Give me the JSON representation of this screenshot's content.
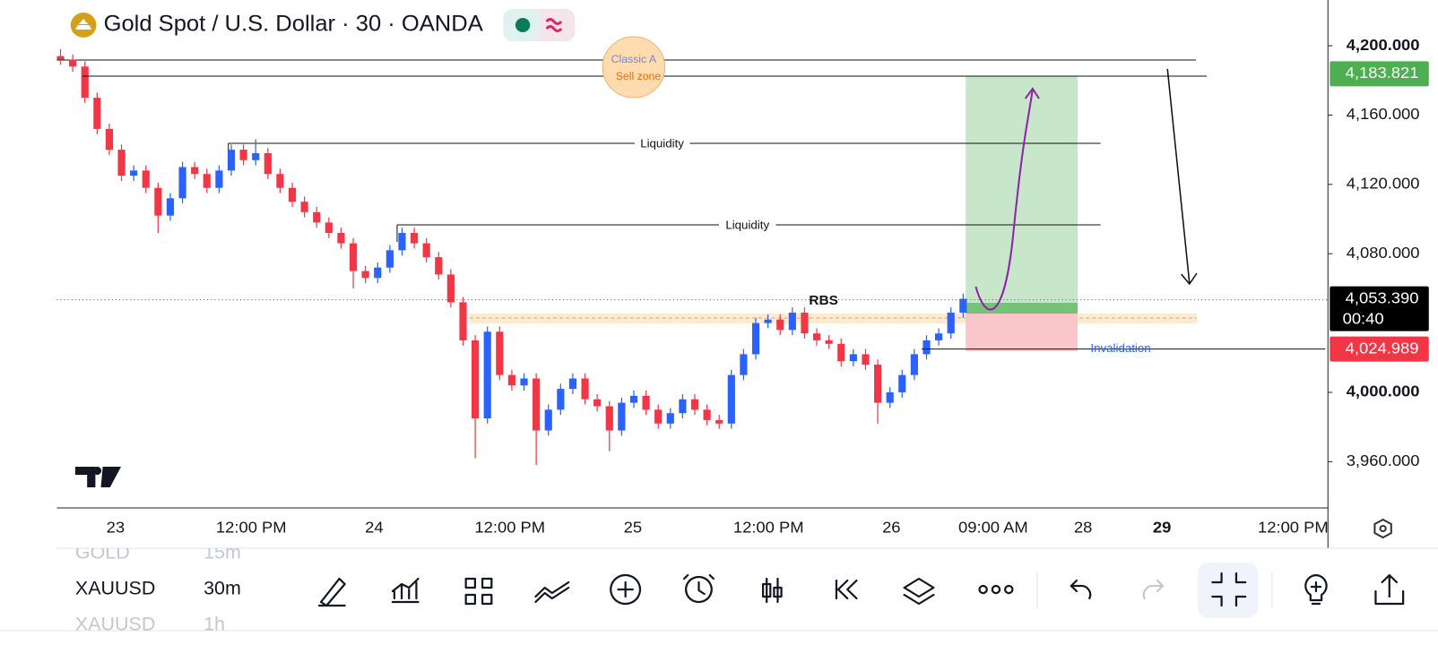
{
  "header": {
    "title": "Gold Spot / U.S. Dollar · 30 · OANDA"
  },
  "chart_data": {
    "type": "candlestick",
    "up_color": "#2962ff",
    "down_color": "#f23645",
    "open": [
      4194,
      4192,
      4188,
      4170,
      4152,
      4140,
      4125,
      4128,
      4118,
      4102,
      4112,
      4130,
      4126,
      4118,
      4128,
      4140,
      4134,
      4138,
      4126,
      4118,
      4110,
      4104,
      4098,
      4092,
      4086,
      4070,
      4066,
      4072,
      4082,
      4092,
      4086,
      4078,
      4068,
      4052,
      4030,
      3985,
      4035,
      4010,
      4004,
      4008,
      3978,
      3990,
      4002,
      4008,
      3996,
      3992,
      3978,
      3994,
      3998,
      3990,
      3982,
      3988,
      3996,
      3990,
      3984,
      3982,
      4010,
      4022,
      4040,
      4042,
      4036,
      4046,
      4034,
      4030,
      4028,
      4018,
      4022,
      4016,
      3994,
      4000,
      4010,
      4022,
      4030,
      4034,
      4046
    ],
    "high": [
      4198,
      4195,
      4191,
      4173,
      4155,
      4143,
      4131,
      4131,
      4121,
      4115,
      4133,
      4133,
      4129,
      4131,
      4143,
      4143,
      4146,
      4141,
      4129,
      4121,
      4113,
      4107,
      4101,
      4095,
      4089,
      4073,
      4075,
      4085,
      4095,
      4095,
      4089,
      4081,
      4071,
      4055,
      4033,
      4038,
      4038,
      4013,
      4011,
      4011,
      3993,
      4005,
      4011,
      4011,
      3999,
      3995,
      3997,
      4001,
      4001,
      3993,
      3991,
      3999,
      3999,
      3993,
      3987,
      4013,
      4025,
      4043,
      4045,
      4045,
      4049,
      4049,
      4037,
      4033,
      4031,
      4025,
      4025,
      4019,
      4003,
      4013,
      4025,
      4033,
      4037,
      4049,
      4057
    ],
    "low": [
      4189,
      4185,
      4167,
      4149,
      4137,
      4122,
      4122,
      4115,
      4092,
      4099,
      4109,
      4123,
      4115,
      4115,
      4125,
      4131,
      4131,
      4123,
      4115,
      4107,
      4101,
      4095,
      4089,
      4083,
      4060,
      4063,
      4063,
      4069,
      4079,
      4083,
      4075,
      4065,
      4049,
      4027,
      3962,
      3982,
      4007,
      4001,
      4001,
      3958,
      3975,
      3987,
      3999,
      3993,
      3989,
      3966,
      3975,
      3991,
      3987,
      3979,
      3979,
      3985,
      3987,
      3981,
      3979,
      3979,
      4007,
      4019,
      4037,
      4033,
      4033,
      4031,
      4027,
      4025,
      4015,
      4015,
      4013,
      3982,
      3991,
      3997,
      4007,
      4019,
      4027,
      4031,
      4043
    ],
    "close": [
      4192,
      4188,
      4170,
      4152,
      4140,
      4125,
      4128,
      4118,
      4102,
      4112,
      4130,
      4126,
      4118,
      4128,
      4140,
      4134,
      4138,
      4126,
      4118,
      4110,
      4104,
      4098,
      4092,
      4086,
      4070,
      4066,
      4072,
      4082,
      4092,
      4086,
      4078,
      4068,
      4052,
      4030,
      3985,
      4035,
      4010,
      4004,
      4008,
      3978,
      3990,
      4002,
      4008,
      3996,
      3992,
      3978,
      3994,
      3998,
      3990,
      3982,
      3988,
      3996,
      3990,
      3984,
      3982,
      4010,
      4022,
      4040,
      4042,
      4036,
      4046,
      4034,
      4030,
      4028,
      4018,
      4022,
      4016,
      3994,
      4000,
      4010,
      4022,
      4030,
      4034,
      4046,
      4054
    ],
    "ylim": [
      3933.3,
      4226.4
    ],
    "yticks": [
      {
        "value": 4200,
        "label": "4,200.000"
      },
      {
        "value": 4160,
        "label": "4,160.000"
      },
      {
        "value": 4120,
        "label": "4,120.000"
      },
      {
        "value": 4080,
        "label": "4,080.000"
      },
      {
        "value": 4000,
        "label": "4,000.000"
      },
      {
        "value": 3960,
        "label": "3,960.000"
      }
    ],
    "x_labels": [
      "23",
      "12:00 PM",
      "24",
      "12:00 PM",
      "25",
      "12:00 PM",
      "26",
      "09:00 AM",
      "28",
      "29",
      "12:00 PM"
    ],
    "price_tags": [
      {
        "value": 4183.821,
        "label": "4,183.821",
        "color": "#4caf50"
      },
      {
        "value": 4053.39,
        "label": "4,053.390",
        "sublabel": "00:40",
        "color": "#000000"
      },
      {
        "value": 4024.989,
        "label": "4,024.989",
        "color": "#f23645"
      }
    ],
    "annotations": {
      "zone": [
        "Classic A",
        "Sell zone"
      ],
      "liquidity": [
        "Liquidity",
        "Liquidity"
      ],
      "rbs": "RBS",
      "invalidation": "Invalidation"
    }
  },
  "watchlist": [
    {
      "symbol": "GOLD",
      "interval": "15m"
    },
    {
      "symbol": "XAUUSD",
      "interval": "30m"
    },
    {
      "symbol": "XAUUSD",
      "interval": "1h"
    }
  ]
}
